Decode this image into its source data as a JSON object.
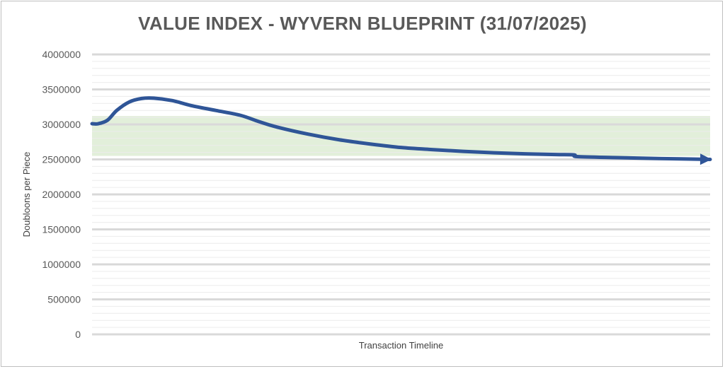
{
  "chart_data": {
    "type": "line",
    "title": "VALUE INDEX - WYVERN BLUEPRINT (31/07/2025)",
    "xlabel": "Transaction Timeline",
    "ylabel": "Doubloons per Piece",
    "ylim": [
      0,
      4000000
    ],
    "ytick_labels": [
      "0",
      "500000",
      "1000000",
      "1500000",
      "2000000",
      "2500000",
      "3000000",
      "3500000",
      "4000000"
    ],
    "grid": true,
    "minor_grid": true,
    "band": {
      "from": 2550000,
      "to": 3120000,
      "color": "#e2efda"
    },
    "series": [
      {
        "color": "#2f5597",
        "arrow_end": true,
        "points": [
          [
            0,
            3010000
          ],
          [
            0.01,
            3010000
          ],
          [
            0.025,
            3060000
          ],
          [
            0.04,
            3200000
          ],
          [
            0.06,
            3320000
          ],
          [
            0.08,
            3370000
          ],
          [
            0.1,
            3375000
          ],
          [
            0.13,
            3340000
          ],
          [
            0.16,
            3270000
          ],
          [
            0.2,
            3200000
          ],
          [
            0.24,
            3130000
          ],
          [
            0.27,
            3040000
          ],
          [
            0.3,
            2960000
          ],
          [
            0.35,
            2860000
          ],
          [
            0.4,
            2780000
          ],
          [
            0.45,
            2720000
          ],
          [
            0.5,
            2670000
          ],
          [
            0.55,
            2640000
          ],
          [
            0.6,
            2615000
          ],
          [
            0.65,
            2595000
          ],
          [
            0.7,
            2580000
          ],
          [
            0.75,
            2570000
          ],
          [
            0.78,
            2565000
          ],
          [
            0.785,
            2540000
          ],
          [
            0.85,
            2525000
          ],
          [
            0.92,
            2512000
          ],
          [
            1.0,
            2500000
          ]
        ]
      }
    ]
  }
}
